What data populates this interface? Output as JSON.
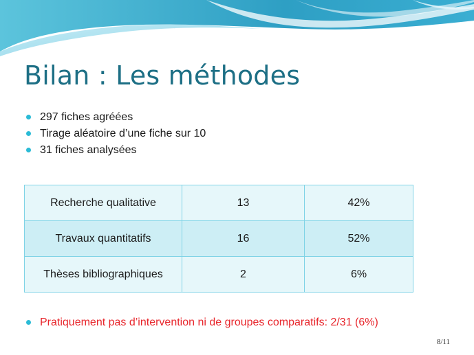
{
  "slide": {
    "title": "Bilan : Les méthodes",
    "bullets": [
      "297 fiches agréées",
      "Tirage aléatoire d’une fiche sur 10",
      "31 fiches analysées"
    ],
    "table": {
      "rows": [
        [
          "Recherche qualitative",
          "13",
          "42%"
        ],
        [
          "Travaux quantitatifs",
          "16",
          "52%"
        ],
        [
          "Thèses bibliographiques",
          "2",
          "6%"
        ]
      ]
    },
    "conclusion": "Pratiquement pas d’intervention ni de groupes comparatifs: 2/31 (6%)",
    "page_number": "8/11"
  },
  "colors": {
    "title": "#1d6f85",
    "bullet": "#2bbbd6",
    "conclusion_text": "#e8262c",
    "table_border": "#7fd3e6",
    "row_light": "#e6f7fa",
    "row_dark": "#cdeef5"
  }
}
